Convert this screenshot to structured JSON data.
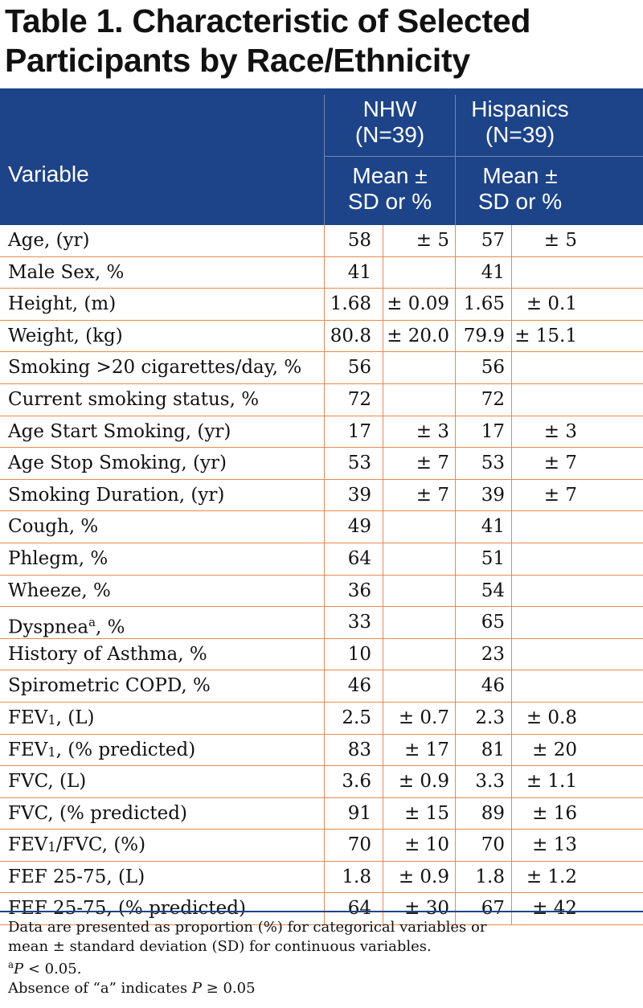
{
  "title": {
    "line1": "Table 1. Characteristic of Selected",
    "line2": "Participants by Race/Ethnicity"
  },
  "header": {
    "variable": "Variable",
    "group1": {
      "name": "NHW",
      "n": "(N=39)",
      "stat1": "Mean ±",
      "stat2": "SD or %"
    },
    "group2": {
      "name": "Hispanics",
      "n": "(N=39)",
      "stat1": "Mean ±",
      "stat2": "SD or %"
    }
  },
  "rows": [
    {
      "label": "Age, (yr)",
      "nhw_mean": "58",
      "nhw_sd": "± 5",
      "his_mean": "57",
      "his_sd": "±  5"
    },
    {
      "label": "Male Sex, %",
      "nhw_mean": "41",
      "nhw_sd": "",
      "his_mean": "41",
      "his_sd": ""
    },
    {
      "label": "Height, (m)",
      "nhw_mean": "1.68",
      "nhw_sd": "± 0.09",
      "his_mean": "1.65",
      "his_sd": "±  0.1"
    },
    {
      "label": "Weight, (kg)",
      "nhw_mean": "80.8",
      "nhw_sd": "± 20.0",
      "his_mean": "79.9",
      "his_sd": "± 15.1"
    },
    {
      "label": "Smoking >20 cigarettes/day, %",
      "nhw_mean": "56",
      "nhw_sd": "",
      "his_mean": "56",
      "his_sd": ""
    },
    {
      "label": "Current smoking status, %",
      "nhw_mean": "72",
      "nhw_sd": "",
      "his_mean": "72",
      "his_sd": ""
    },
    {
      "label": "Age Start Smoking, (yr)",
      "nhw_mean": "17",
      "nhw_sd": "±  3",
      "his_mean": "17",
      "his_sd": "±  3"
    },
    {
      "label": "Age Stop Smoking, (yr)",
      "nhw_mean": "53",
      "nhw_sd": "±  7",
      "his_mean": "53",
      "his_sd": "±  7"
    },
    {
      "label": "Smoking Duration, (yr)",
      "nhw_mean": "39",
      "nhw_sd": "± 7",
      "his_mean": "39",
      "his_sd": "±  7"
    },
    {
      "label": "Cough, %",
      "nhw_mean": "49",
      "nhw_sd": "",
      "his_mean": "41",
      "his_sd": ""
    },
    {
      "label": "Phlegm, %",
      "nhw_mean": "64",
      "nhw_sd": "",
      "his_mean": "51",
      "his_sd": ""
    },
    {
      "label": "Wheeze, %",
      "nhw_mean": "36",
      "nhw_sd": "",
      "his_mean": "54",
      "his_sd": ""
    },
    {
      "label": "Dyspnea",
      "label_sup": "a",
      "label_tail": ", %",
      "nhw_mean": "33",
      "nhw_sd": "",
      "his_mean": "65",
      "his_sd": ""
    },
    {
      "label": "History of Asthma, %",
      "nhw_mean": "10",
      "nhw_sd": "",
      "his_mean": "23",
      "his_sd": ""
    },
    {
      "label": "Spirometric COPD, %",
      "nhw_mean": "46",
      "nhw_sd": "",
      "his_mean": "46",
      "his_sd": ""
    },
    {
      "label": "FEV",
      "label_sub": "1",
      "label_tail": ", (L)",
      "nhw_mean": "2.5",
      "nhw_sd": "±  0.7",
      "his_mean": "2.3",
      "his_sd": "±  0.8"
    },
    {
      "label": "FEV",
      "label_sub": "1",
      "label_tail": ", (% predicted)",
      "nhw_mean": "83",
      "nhw_sd": "±  17",
      "his_mean": "81",
      "his_sd": "±  20"
    },
    {
      "label": "FVC, (L)",
      "nhw_mean": "3.6",
      "nhw_sd": "±  0.9",
      "his_mean": "3.3",
      "his_sd": "±  1.1"
    },
    {
      "label": "FVC, (% predicted)",
      "nhw_mean": "91",
      "nhw_sd": "±  15",
      "his_mean": "89",
      "his_sd": "±  16"
    },
    {
      "label": "FEV",
      "label_sub": "1",
      "label_tail": "/FVC, (%)",
      "nhw_mean": "70",
      "nhw_sd": "±  10",
      "his_mean": "70",
      "his_sd": "±  13"
    },
    {
      "label": "FEF 25-75, (L)",
      "nhw_mean": "1.8",
      "nhw_sd": "±  0.9",
      "his_mean": "1.8",
      "his_sd": "±  1.2"
    },
    {
      "label": "FEF 25-75, (% predicted)",
      "nhw_mean": "64",
      "nhw_sd": "±  30",
      "his_mean": "67",
      "his_sd": "±  42"
    }
  ],
  "footnote": {
    "line1": "Data are presented as proportion (%) for categorical variables or",
    "line2": "mean ± standard deviation (SD) for continuous variables.",
    "line3_sup": "a",
    "line3_p": "P",
    "line3_rest": " < 0.05.",
    "line4_pre": "Absence of “a” indicates ",
    "line4_p": "P",
    "line4_rest": " ≥ 0.05"
  },
  "colors": {
    "header_bg": "#1d4489",
    "row_rule": "#e8894f"
  }
}
